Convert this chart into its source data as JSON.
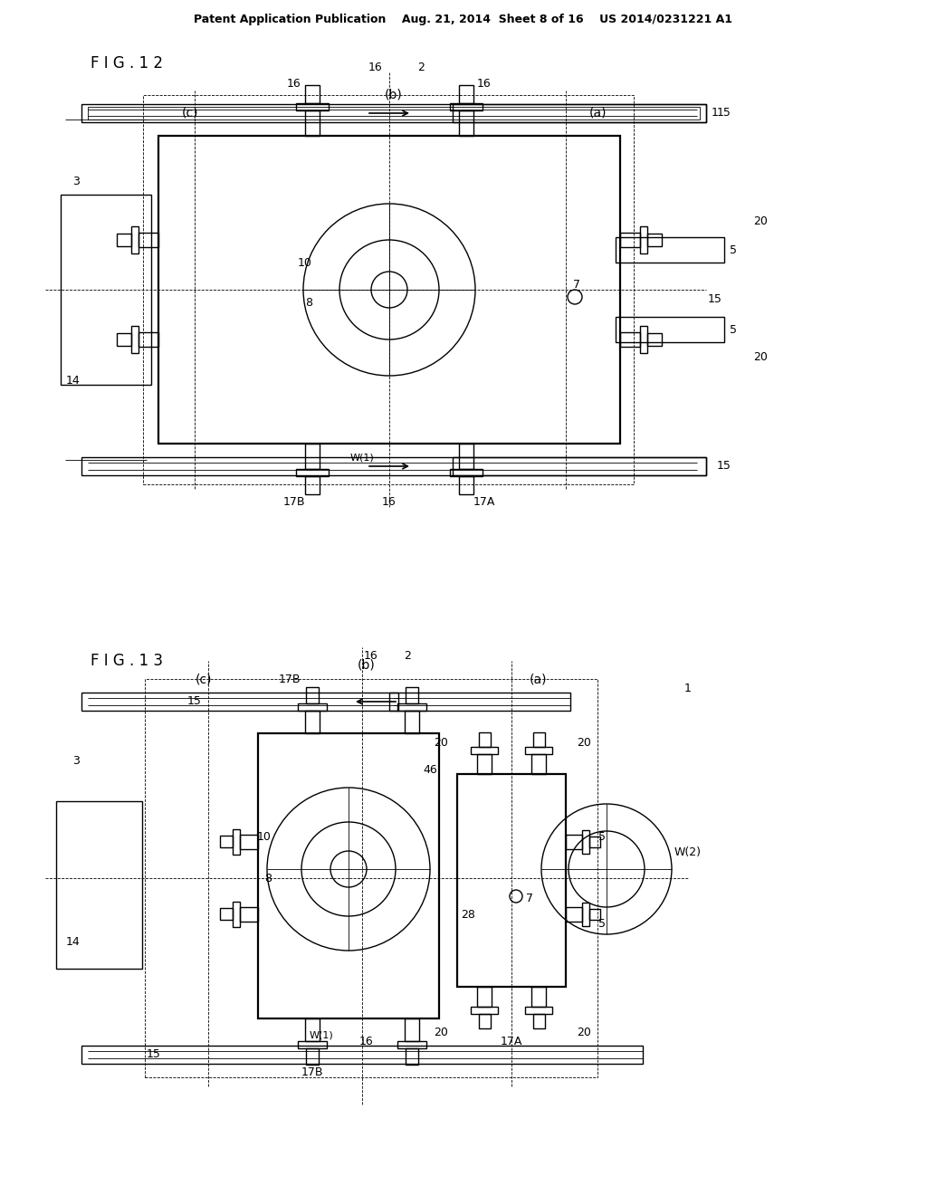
{
  "bg_color": "#ffffff",
  "header": "Patent Application Publication    Aug. 21, 2014  Sheet 8 of 16    US 2014/0231221 A1",
  "fig12_label": "F I G . 1 2",
  "fig13_label": "F I G . 1 3",
  "header_fs": 9,
  "label_fs": 12,
  "ref_fs": 9
}
